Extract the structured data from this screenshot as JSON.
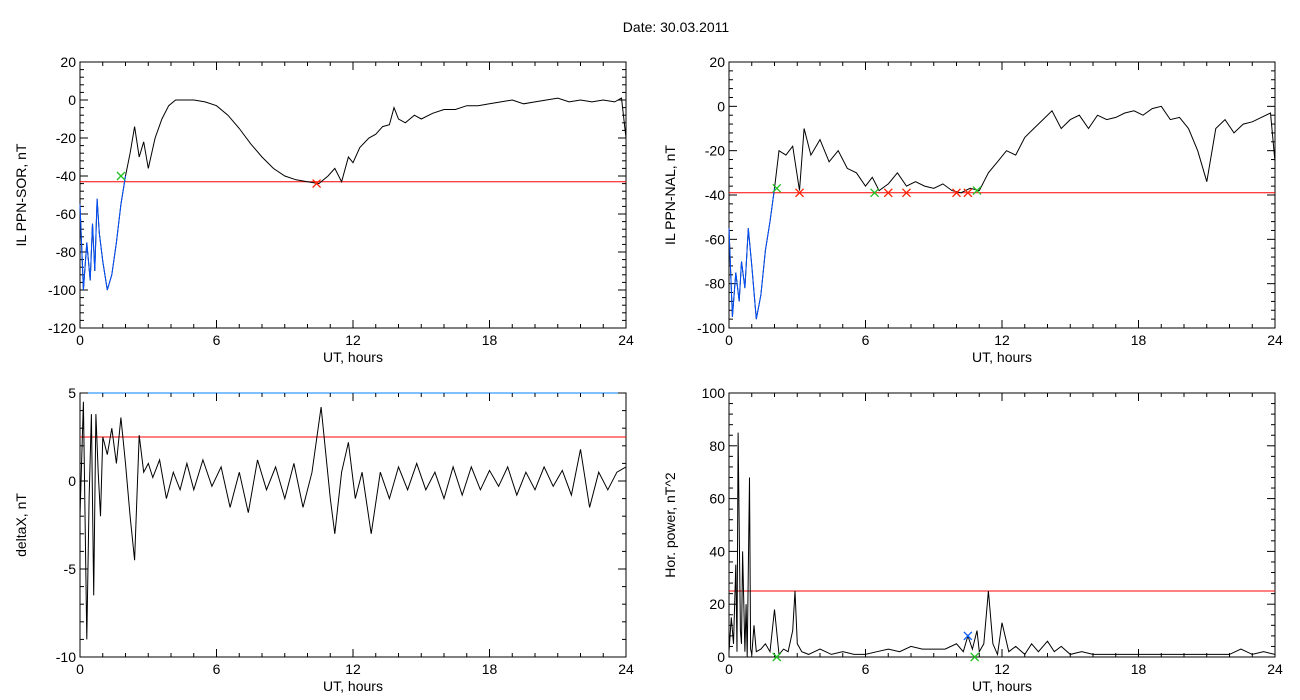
{
  "title": "Date:  30.03.2011",
  "colors": {
    "data": "#000000",
    "threshold": "#ff0000",
    "highlight": "#0050ff",
    "marker_green": "#20c020",
    "marker_red": "#ff2000",
    "marker_blue": "#1060ff",
    "frame_top_blue": "#0080ff"
  },
  "chart_data": [
    {
      "id": "il-ppn-sor",
      "type": "line",
      "xlabel": "UT, hours",
      "ylabel": "IL PPN-SOR, nT",
      "xlim": [
        0,
        24
      ],
      "ylim": [
        -120,
        20
      ],
      "xticks": [
        0,
        6,
        12,
        18,
        24
      ],
      "yticks": [
        -120,
        -100,
        -80,
        -60,
        -40,
        -20,
        0,
        20
      ],
      "threshold": -43,
      "x": [
        0,
        0.15,
        0.3,
        0.45,
        0.55,
        0.65,
        0.75,
        0.85,
        1.0,
        1.2,
        1.4,
        1.6,
        1.8,
        2.0,
        2.2,
        2.4,
        2.6,
        2.8,
        3.0,
        3.3,
        3.6,
        3.9,
        4.2,
        4.5,
        5.0,
        5.5,
        6.0,
        6.5,
        7.0,
        7.5,
        8.0,
        8.5,
        9.0,
        9.5,
        10.0,
        10.5,
        10.9,
        11.2,
        11.5,
        11.8,
        12.0,
        12.3,
        12.7,
        13.0,
        13.3,
        13.6,
        13.8,
        14.0,
        14.3,
        14.7,
        15.0,
        15.5,
        16.0,
        16.5,
        17.0,
        17.5,
        18.0,
        18.5,
        19.0,
        19.5,
        20.0,
        20.5,
        21.0,
        21.5,
        22.0,
        22.5,
        23.0,
        23.5,
        23.8,
        24.0
      ],
      "y": [
        -55,
        -100,
        -75,
        -95,
        -65,
        -90,
        -52,
        -70,
        -85,
        -100,
        -92,
        -75,
        -55,
        -40,
        -28,
        -14,
        -30,
        -22,
        -36,
        -20,
        -10,
        -3,
        0,
        0,
        0,
        -1,
        -3,
        -8,
        -15,
        -23,
        -30,
        -36,
        -40,
        -42,
        -43,
        -44,
        -40,
        -36,
        -43,
        -30,
        -33,
        -25,
        -20,
        -18,
        -14,
        -13,
        -4,
        -10,
        -12,
        -8,
        -10,
        -7,
        -5,
        -5,
        -3,
        -3,
        -2,
        -1,
        0,
        -2,
        -1,
        0,
        1,
        -1,
        0,
        -1,
        0,
        -1,
        1,
        -20
      ],
      "markers": [
        {
          "x": 1.8,
          "y": -40,
          "color": "green"
        },
        {
          "x": 10.4,
          "y": -44,
          "color": "red"
        }
      ]
    },
    {
      "id": "il-ppn-nal",
      "type": "line",
      "xlabel": "UT, hours",
      "ylabel": "IL PPN-NAL, nT",
      "xlim": [
        0,
        24
      ],
      "ylim": [
        -100,
        20
      ],
      "xticks": [
        0,
        6,
        12,
        18,
        24
      ],
      "yticks": [
        -100,
        -80,
        -60,
        -40,
        -20,
        0,
        20
      ],
      "threshold": -39,
      "x": [
        0,
        0.15,
        0.3,
        0.45,
        0.55,
        0.7,
        0.85,
        1.0,
        1.2,
        1.4,
        1.6,
        1.8,
        2.0,
        2.2,
        2.5,
        2.8,
        3.1,
        3.3,
        3.6,
        4.0,
        4.4,
        4.8,
        5.2,
        5.6,
        6.0,
        6.3,
        6.6,
        7.0,
        7.4,
        7.8,
        8.2,
        8.6,
        9.0,
        9.4,
        9.8,
        10.2,
        10.6,
        11.0,
        11.4,
        11.8,
        12.2,
        12.6,
        13.0,
        13.4,
        13.8,
        14.2,
        14.6,
        15.0,
        15.4,
        15.8,
        16.2,
        16.6,
        17.0,
        17.4,
        17.8,
        18.2,
        18.6,
        19.0,
        19.4,
        19.8,
        20.2,
        20.6,
        21.0,
        21.4,
        21.8,
        22.2,
        22.6,
        23.0,
        23.4,
        23.8,
        24.0
      ],
      "y": [
        -55,
        -95,
        -75,
        -88,
        -70,
        -82,
        -55,
        -72,
        -96,
        -85,
        -65,
        -52,
        -37,
        -20,
        -22,
        -18,
        -38,
        -10,
        -22,
        -15,
        -25,
        -20,
        -28,
        -30,
        -36,
        -32,
        -38,
        -35,
        -30,
        -36,
        -34,
        -36,
        -37,
        -35,
        -38,
        -39,
        -37,
        -38,
        -30,
        -25,
        -20,
        -22,
        -14,
        -10,
        -6,
        -2,
        -10,
        -6,
        -4,
        -10,
        -4,
        -6,
        -5,
        -3,
        -2,
        -4,
        -1,
        0,
        -6,
        -5,
        -10,
        -20,
        -34,
        -10,
        -6,
        -12,
        -8,
        -7,
        -5,
        -3,
        -25
      ],
      "markers": [
        {
          "x": 2.1,
          "y": -37,
          "color": "green"
        },
        {
          "x": 3.1,
          "y": -39,
          "color": "red"
        },
        {
          "x": 6.4,
          "y": -39,
          "color": "green"
        },
        {
          "x": 7.0,
          "y": -39,
          "color": "red"
        },
        {
          "x": 7.8,
          "y": -39,
          "color": "red"
        },
        {
          "x": 10.0,
          "y": -39,
          "color": "red"
        },
        {
          "x": 10.5,
          "y": -39,
          "color": "red"
        },
        {
          "x": 10.9,
          "y": -38,
          "color": "green"
        }
      ]
    },
    {
      "id": "deltax",
      "type": "line",
      "xlabel": "UT, hours",
      "ylabel": "deltaX, nT",
      "xlim": [
        0,
        24
      ],
      "ylim": [
        -10,
        5
      ],
      "xticks": [
        0,
        6,
        12,
        18,
        24
      ],
      "yticks": [
        -10,
        -5,
        0,
        5
      ],
      "threshold": 2.5,
      "x": [
        0,
        0.15,
        0.3,
        0.4,
        0.5,
        0.6,
        0.7,
        0.8,
        0.9,
        1.0,
        1.2,
        1.4,
        1.6,
        1.8,
        2.0,
        2.2,
        2.4,
        2.6,
        2.8,
        3.0,
        3.2,
        3.5,
        3.8,
        4.1,
        4.4,
        4.7,
        5.0,
        5.4,
        5.8,
        6.2,
        6.6,
        7.0,
        7.4,
        7.8,
        8.2,
        8.6,
        9.0,
        9.4,
        9.8,
        10.2,
        10.6,
        11.0,
        11.2,
        11.5,
        11.8,
        12.1,
        12.4,
        12.8,
        13.2,
        13.6,
        14.0,
        14.4,
        14.8,
        15.2,
        15.6,
        16.0,
        16.4,
        16.8,
        17.2,
        17.6,
        18.0,
        18.4,
        18.8,
        19.2,
        19.6,
        20.0,
        20.4,
        20.8,
        21.2,
        21.6,
        22.0,
        22.4,
        22.8,
        23.2,
        23.6,
        24.0
      ],
      "y": [
        -2,
        4.5,
        -9,
        -1,
        3.8,
        -6.5,
        3.8,
        0.5,
        -2,
        2.5,
        1.5,
        3,
        1,
        3.6,
        1,
        -2,
        -4.5,
        2.6,
        0.5,
        1,
        0.2,
        1.2,
        -1,
        0.5,
        -0.5,
        1,
        -0.5,
        1.2,
        -0.3,
        0.8,
        -1.5,
        0.5,
        -1.8,
        1.2,
        -0.5,
        0.8,
        -1,
        1,
        -1.5,
        0.5,
        4.2,
        -1,
        -3,
        0.5,
        2.2,
        -1,
        0.5,
        -3,
        0.5,
        -1,
        0.8,
        -0.5,
        1,
        -0.5,
        0.5,
        -1,
        0.8,
        -0.8,
        0.8,
        -0.5,
        0.6,
        -0.3,
        0.8,
        -0.8,
        0.5,
        -0.5,
        0.8,
        -0.3,
        0.6,
        -0.8,
        1.8,
        -1.5,
        0.5,
        -0.5,
        0.5,
        0.8
      ],
      "markers": []
    },
    {
      "id": "hor-power",
      "type": "line",
      "xlabel": "UT, hours",
      "ylabel": "Hor. power, nT^2",
      "xlim": [
        0,
        24
      ],
      "ylim": [
        0,
        100
      ],
      "xticks": [
        0,
        6,
        12,
        18,
        24
      ],
      "yticks": [
        0,
        20,
        40,
        60,
        80,
        100
      ],
      "threshold": 25,
      "x": [
        0,
        0.1,
        0.2,
        0.3,
        0.35,
        0.4,
        0.5,
        0.55,
        0.6,
        0.7,
        0.75,
        0.8,
        0.9,
        0.95,
        1.0,
        1.1,
        1.2,
        1.4,
        1.6,
        1.8,
        2.0,
        2.2,
        2.4,
        2.6,
        2.8,
        2.9,
        3.0,
        3.2,
        3.5,
        4.0,
        4.5,
        5.0,
        5.5,
        6.0,
        6.5,
        7.0,
        7.5,
        8.0,
        8.5,
        9.0,
        9.5,
        10.0,
        10.3,
        10.5,
        10.7,
        10.9,
        11.0,
        11.2,
        11.4,
        11.6,
        11.8,
        12.0,
        12.3,
        12.6,
        13.0,
        13.3,
        13.6,
        14.0,
        14.3,
        14.6,
        15.0,
        15.5,
        16.0,
        17.0,
        18.0,
        19.0,
        20.0,
        21.0,
        22.0,
        22.5,
        23.0,
        23.5,
        24.0
      ],
      "y": [
        2,
        15,
        5,
        35,
        2,
        85,
        10,
        5,
        40,
        2,
        20,
        0,
        68,
        3,
        1,
        12,
        2,
        3,
        5,
        2,
        18,
        1,
        3,
        2,
        10,
        25,
        5,
        2,
        1,
        3,
        1,
        2,
        1,
        1,
        2,
        3,
        2,
        4,
        3,
        3,
        3,
        5,
        2,
        8,
        3,
        10,
        2,
        5,
        25,
        5,
        1,
        13,
        2,
        4,
        1,
        5,
        2,
        6,
        2,
        4,
        1,
        2,
        1,
        1,
        1,
        1,
        1,
        1,
        1,
        3,
        1,
        2,
        1
      ],
      "markers": [
        {
          "x": 2.1,
          "y": 0,
          "color": "green"
        },
        {
          "x": 10.5,
          "y": 8,
          "color": "blue"
        },
        {
          "x": 10.8,
          "y": 0,
          "color": "green"
        }
      ]
    }
  ]
}
